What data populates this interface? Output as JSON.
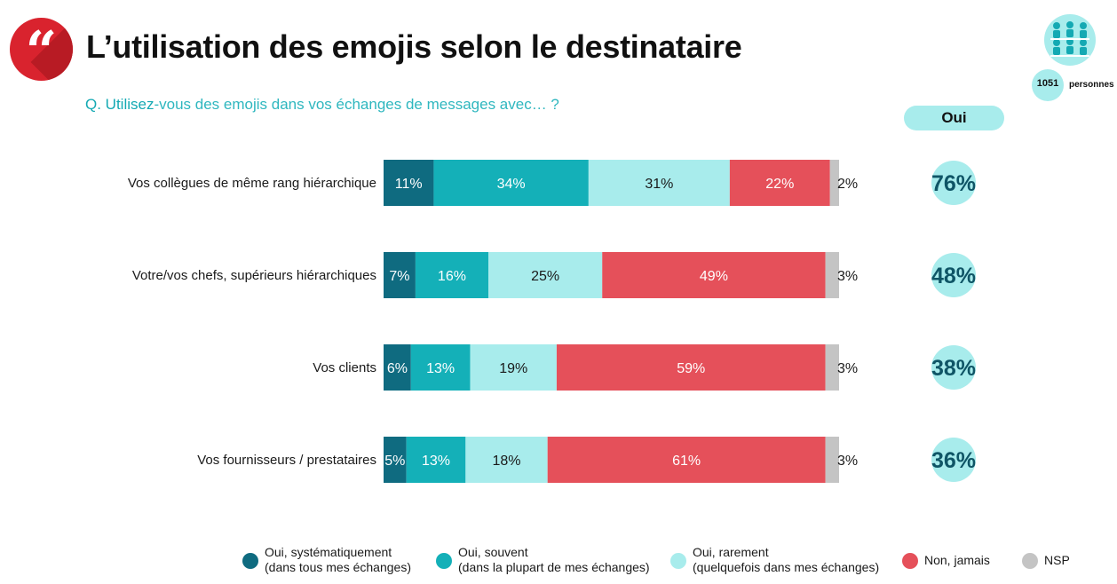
{
  "header": {
    "quote_glyph": "“",
    "title": "L’utilisation des emojis selon le destinataire",
    "question_lead": "Q. Utilisez",
    "question_rest": "-vous des emojis dans vos échanges de messages avec… ?"
  },
  "sample": {
    "count": "1051",
    "unit": "personnes",
    "icon": "people-group-icon"
  },
  "oui_column": {
    "header": "Oui"
  },
  "colors": {
    "systematique": "#0f6b80",
    "souvent": "#14b0b8",
    "rarement": "#a8ecec",
    "jamais": "#e5505a",
    "nsp": "#c4c4c4",
    "oui_circle": "#a8ecec",
    "accent": "#d9232e"
  },
  "chart_data": {
    "type": "bar",
    "orientation": "horizontal",
    "stacked": true,
    "xlim": [
      0,
      100
    ],
    "categories": [
      "Vos collègues de même rang hiérarchique",
      "Votre/vos chefs, supérieurs hiérarchiques",
      "Vos clients",
      "Vos fournisseurs / prestataires"
    ],
    "series": [
      {
        "name": "Oui, systématiquement (dans tous mes échanges)",
        "values": [
          11,
          7,
          6,
          5
        ],
        "labels": [
          "11%",
          "7%",
          "6%",
          "5%"
        ]
      },
      {
        "name": "Oui, souvent (dans la plupart de mes échanges)",
        "values": [
          34,
          16,
          13,
          13
        ],
        "labels": [
          "34%",
          "16%",
          "13%",
          "13%"
        ]
      },
      {
        "name": "Oui, rarement (quelquefois dans mes échanges)",
        "values": [
          31,
          25,
          19,
          18
        ],
        "labels": [
          "31%",
          "25%",
          "19%",
          "18%"
        ]
      },
      {
        "name": "Non, jamais",
        "values": [
          22,
          49,
          59,
          61
        ],
        "labels": [
          "22%",
          "49%",
          "59%",
          "61%"
        ]
      },
      {
        "name": "NSP",
        "values": [
          2,
          3,
          3,
          3
        ],
        "labels": [
          "2%",
          "3%",
          "3%",
          "3%"
        ]
      }
    ],
    "oui_totals": [
      "76%",
      "48%",
      "38%",
      "36%"
    ],
    "legend_position": "bottom"
  },
  "legend": [
    {
      "line1": "Oui, systématiquement",
      "line2": "(dans tous mes échanges)"
    },
    {
      "line1": "Oui, souvent",
      "line2": "(dans la plupart de mes échanges)"
    },
    {
      "line1": "Oui, rarement",
      "line2": "(quelquefois dans mes échanges)"
    },
    {
      "line1": "Non, jamais",
      "line2": ""
    },
    {
      "line1": "NSP",
      "line2": ""
    }
  ]
}
